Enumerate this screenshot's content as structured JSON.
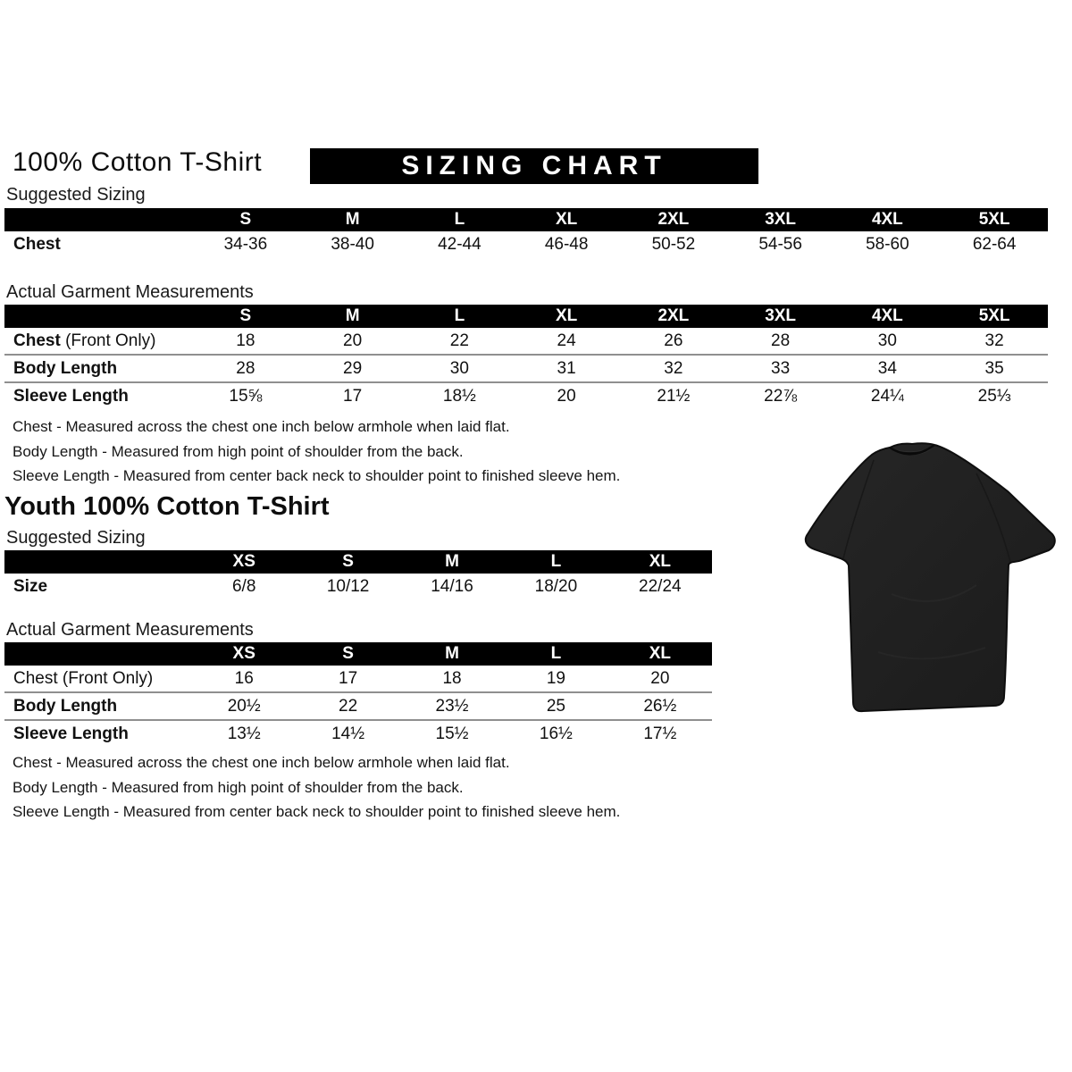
{
  "banner": "SIZING CHART",
  "adult": {
    "heading": "100% Cotton T-Shirt",
    "suggested": {
      "label": "Suggested Sizing",
      "columns": [
        "S",
        "M",
        "L",
        "XL",
        "2XL",
        "3XL",
        "4XL",
        "5XL"
      ],
      "rows": [
        {
          "label_bold": "Chest",
          "label_rest": "",
          "values": [
            "34-36",
            "38-40",
            "42-44",
            "46-48",
            "50-52",
            "54-56",
            "58-60",
            "62-64"
          ]
        }
      ]
    },
    "actual": {
      "label": "Actual Garment Measurements",
      "columns": [
        "S",
        "M",
        "L",
        "XL",
        "2XL",
        "3XL",
        "4XL",
        "5XL"
      ],
      "rows": [
        {
          "label_bold": "Chest",
          "label_rest": " (Front Only)",
          "values": [
            "18",
            "20",
            "22",
            "24",
            "26",
            "28",
            "30",
            "32"
          ]
        },
        {
          "label_bold": "Body Length",
          "label_rest": "",
          "values": [
            "28",
            "29",
            "30",
            "31",
            "32",
            "33",
            "34",
            "35"
          ]
        },
        {
          "label_bold": "Sleeve Length",
          "label_rest": "",
          "values": [
            "15⅝",
            "17",
            "18½",
            "20",
            "21½",
            "22⅞",
            "24¼",
            "25⅓"
          ]
        }
      ]
    },
    "notes": [
      "Chest - Measured across the chest one inch below armhole when laid flat.",
      "Body Length - Measured from high point of shoulder from the back.",
      "Sleeve Length - Measured from center back neck to shoulder point to finished sleeve hem."
    ]
  },
  "youth": {
    "heading": "Youth 100% Cotton T-Shirt",
    "suggested": {
      "label": "Suggested Sizing",
      "columns": [
        "XS",
        "S",
        "M",
        "L",
        "XL"
      ],
      "rows": [
        {
          "label_bold": "Size",
          "label_rest": "",
          "values": [
            "6/8",
            "10/12",
            "14/16",
            "18/20",
            "22/24"
          ]
        }
      ]
    },
    "actual": {
      "label": "Actual Garment Measurements",
      "columns": [
        "XS",
        "S",
        "M",
        "L",
        "XL"
      ],
      "rows": [
        {
          "label_bold": "",
          "label_rest": "Chest (Front Only)",
          "values": [
            "16",
            "17",
            "18",
            "19",
            "20"
          ]
        },
        {
          "label_bold": "Body Length",
          "label_rest": "",
          "values": [
            "20½",
            "22",
            "23½",
            "25",
            "26½"
          ]
        },
        {
          "label_bold": "Sleeve Length",
          "label_rest": "",
          "values": [
            "13½",
            "14½",
            "15½",
            "16½",
            "17½"
          ]
        }
      ]
    },
    "notes": [
      "Chest - Measured across the chest one inch below armhole when laid flat.",
      "Body Length - Measured from high point of shoulder from the back.",
      "Sleeve Length - Measured from center back neck to shoulder point to finished sleeve hem."
    ]
  },
  "tshirt": {
    "name": "black-cotton-tshirt",
    "color": "#222222"
  }
}
